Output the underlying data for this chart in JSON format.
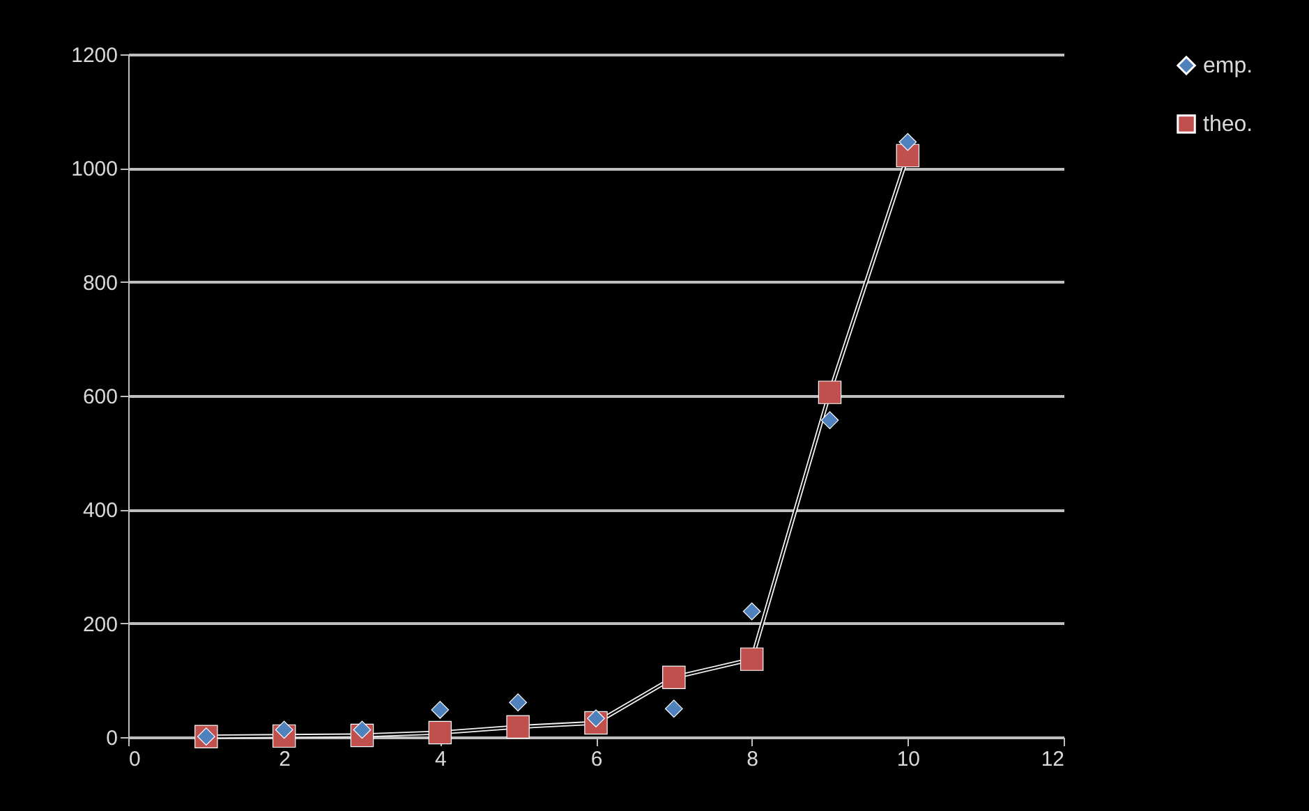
{
  "chart_data": {
    "type": "scatter",
    "x": [
      1,
      2,
      3,
      4,
      5,
      6,
      7,
      8,
      9,
      10
    ],
    "series": [
      {
        "name": "emp.",
        "color": "#4f81bd",
        "marker": "diamond",
        "values": [
          1,
          13,
          13,
          48,
          61,
          33,
          50,
          221,
          557,
          1046
        ]
      },
      {
        "name": "theo.",
        "color": "#c0504d",
        "type": "line",
        "marker": "square",
        "values": [
          1,
          2,
          3,
          8,
          18,
          25,
          105,
          137,
          606,
          1022
        ]
      }
    ],
    "xlim": [
      0,
      12
    ],
    "xticks": [
      0,
      2,
      4,
      6,
      8,
      10,
      12
    ],
    "ylim": [
      0,
      1200
    ],
    "yticks": [
      0,
      200,
      400,
      600,
      800,
      1000,
      1200
    ],
    "grid": "y",
    "legend": "right"
  }
}
